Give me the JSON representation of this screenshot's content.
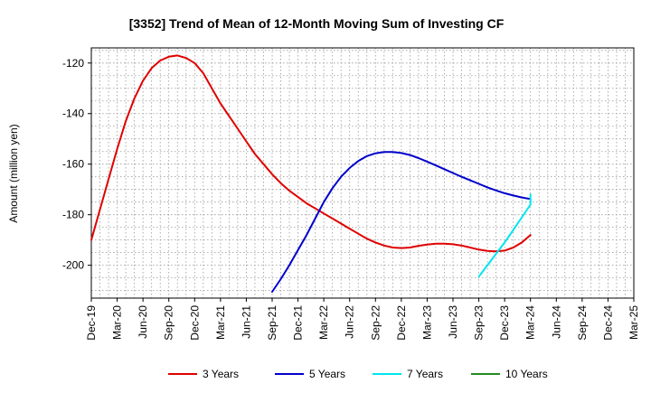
{
  "chart_data": {
    "type": "line",
    "title": "[3352]  Trend of Mean of 12-Month Moving Sum of Investing CF",
    "ylabel": "Amount (million yen)",
    "xlabel": "",
    "x_ticks": [
      "Dec-19",
      "Mar-20",
      "Jun-20",
      "Sep-20",
      "Dec-20",
      "Mar-21",
      "Jun-21",
      "Sep-21",
      "Dec-21",
      "Mar-22",
      "Jun-22",
      "Sep-22",
      "Dec-22",
      "Mar-23",
      "Jun-23",
      "Sep-23",
      "Dec-23",
      "Mar-24",
      "Jun-24",
      "Sep-24",
      "Dec-24",
      "Mar-25"
    ],
    "y_ticks": [
      -120,
      -140,
      -160,
      -180,
      -200
    ],
    "ylim": [
      -213,
      -114
    ],
    "grid": true,
    "legend_position": "bottom",
    "series": [
      {
        "name": "3 Years",
        "color": "#e00000",
        "points": [
          [
            "2019-12",
            -190
          ],
          [
            "2020-01",
            -178
          ],
          [
            "2020-02",
            -166
          ],
          [
            "2020-03",
            -154
          ],
          [
            "2020-04",
            -143
          ],
          [
            "2020-05",
            -134
          ],
          [
            "2020-06",
            -127
          ],
          [
            "2020-07",
            -122
          ],
          [
            "2020-08",
            -119
          ],
          [
            "2020-09",
            -117.5
          ],
          [
            "2020-10",
            -117
          ],
          [
            "2020-11",
            -118
          ],
          [
            "2020-12",
            -120
          ],
          [
            "2021-01",
            -124
          ],
          [
            "2021-02",
            -130
          ],
          [
            "2021-03",
            -136
          ],
          [
            "2021-04",
            -141
          ],
          [
            "2021-05",
            -146
          ],
          [
            "2021-06",
            -151
          ],
          [
            "2021-07",
            -156
          ],
          [
            "2021-08",
            -160
          ],
          [
            "2021-09",
            -164
          ],
          [
            "2021-10",
            -167.5
          ],
          [
            "2021-11",
            -170.5
          ],
          [
            "2021-12",
            -173
          ],
          [
            "2022-01",
            -175.5
          ],
          [
            "2022-02",
            -177.5
          ],
          [
            "2022-03",
            -179.5
          ],
          [
            "2022-04",
            -181.5
          ],
          [
            "2022-05",
            -183.5
          ],
          [
            "2022-06",
            -185.5
          ],
          [
            "2022-07",
            -187.5
          ],
          [
            "2022-08",
            -189.5
          ],
          [
            "2022-09",
            -191
          ],
          [
            "2022-10",
            -192.2
          ],
          [
            "2022-11",
            -193
          ],
          [
            "2022-12",
            -193.2
          ],
          [
            "2023-01",
            -193
          ],
          [
            "2023-02",
            -192.3
          ],
          [
            "2023-03",
            -191.8
          ],
          [
            "2023-04",
            -191.5
          ],
          [
            "2023-05",
            -191.5
          ],
          [
            "2023-06",
            -191.7
          ],
          [
            "2023-07",
            -192.2
          ],
          [
            "2023-08",
            -193
          ],
          [
            "2023-09",
            -193.8
          ],
          [
            "2023-10",
            -194.3
          ],
          [
            "2023-11",
            -194.5
          ],
          [
            "2023-12",
            -194.2
          ],
          [
            "2024-01",
            -193
          ],
          [
            "2024-02",
            -191
          ],
          [
            "2024-03",
            -188
          ]
        ]
      },
      {
        "name": "5 Years",
        "color": "#0000cc",
        "points": [
          [
            "2021-09",
            -210.5
          ],
          [
            "2021-10",
            -205.5
          ],
          [
            "2021-11",
            -200
          ],
          [
            "2021-12",
            -194
          ],
          [
            "2022-01",
            -188
          ],
          [
            "2022-02",
            -181.5
          ],
          [
            "2022-03",
            -175
          ],
          [
            "2022-04",
            -169.5
          ],
          [
            "2022-05",
            -165
          ],
          [
            "2022-06",
            -161.5
          ],
          [
            "2022-07",
            -158.8
          ],
          [
            "2022-08",
            -156.8
          ],
          [
            "2022-09",
            -155.7
          ],
          [
            "2022-10",
            -155.2
          ],
          [
            "2022-11",
            -155.2
          ],
          [
            "2022-12",
            -155.6
          ],
          [
            "2023-01",
            -156.4
          ],
          [
            "2023-02",
            -157.6
          ],
          [
            "2023-03",
            -159
          ],
          [
            "2023-04",
            -160.5
          ],
          [
            "2023-05",
            -162
          ],
          [
            "2023-06",
            -163.5
          ],
          [
            "2023-07",
            -165
          ],
          [
            "2023-08",
            -166.4
          ],
          [
            "2023-09",
            -167.8
          ],
          [
            "2023-10",
            -169.2
          ],
          [
            "2023-11",
            -170.4
          ],
          [
            "2023-12",
            -171.5
          ],
          [
            "2024-01",
            -172.4
          ],
          [
            "2024-02",
            -173.2
          ],
          [
            "2024-03",
            -173.8
          ]
        ]
      },
      {
        "name": "7 Years",
        "color": "#00e5ee",
        "points": [
          [
            "2023-09",
            -204.5
          ],
          [
            "2023-10",
            -200
          ],
          [
            "2023-11",
            -195.5
          ],
          [
            "2023-12",
            -191
          ],
          [
            "2024-01",
            -186
          ],
          [
            "2024-02",
            -181
          ],
          [
            "2024-03",
            -176
          ],
          [
            "2024-03",
            -172
          ]
        ]
      },
      {
        "name": "10 Years",
        "color": "#228b22",
        "points": []
      }
    ]
  }
}
